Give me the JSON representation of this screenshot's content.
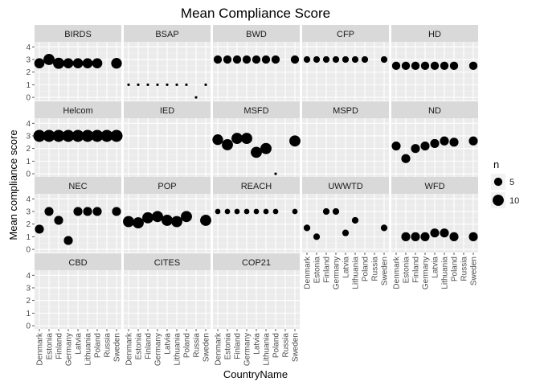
{
  "chart_data": {
    "type": "scatter",
    "title": "Mean Compliance Score",
    "xlabel": "CountryName",
    "ylabel": "Mean compliance score",
    "countries": [
      "Denmark",
      "Estonia",
      "Finland",
      "Germany",
      "Latvia",
      "Lithuania",
      "Poland",
      "Russia",
      "Sweden"
    ],
    "y_ticks": [
      "0",
      "1",
      "2",
      "3",
      "4"
    ],
    "ylim": [
      -0.25,
      4.4
    ],
    "grid": true,
    "legend": {
      "title": "n",
      "position": "right",
      "entries": [
        {
          "label": "5",
          "n": 5
        },
        {
          "label": "10",
          "n": 10
        }
      ]
    },
    "panels": [
      {
        "name": "BIRDS",
        "points": [
          {
            "x": "Denmark",
            "y": 2.7,
            "n": 8
          },
          {
            "x": "Estonia",
            "y": 3.0,
            "n": 10
          },
          {
            "x": "Finland",
            "y": 2.7,
            "n": 10
          },
          {
            "x": "Germany",
            "y": 2.7,
            "n": 8
          },
          {
            "x": "Latvia",
            "y": 2.7,
            "n": 8
          },
          {
            "x": "Lithuania",
            "y": 2.7,
            "n": 8
          },
          {
            "x": "Poland",
            "y": 2.7,
            "n": 8
          },
          {
            "x": "Sweden",
            "y": 2.7,
            "n": 9
          }
        ]
      },
      {
        "name": "BSAP",
        "points": [
          {
            "x": "Denmark",
            "y": 1.0,
            "n": 1
          },
          {
            "x": "Estonia",
            "y": 1.0,
            "n": 1
          },
          {
            "x": "Finland",
            "y": 1.0,
            "n": 1
          },
          {
            "x": "Germany",
            "y": 1.0,
            "n": 1
          },
          {
            "x": "Latvia",
            "y": 1.0,
            "n": 1
          },
          {
            "x": "Lithuania",
            "y": 1.0,
            "n": 1
          },
          {
            "x": "Poland",
            "y": 1.0,
            "n": 1
          },
          {
            "x": "Russia",
            "y": 0.0,
            "n": 1
          },
          {
            "x": "Sweden",
            "y": 1.0,
            "n": 1
          }
        ]
      },
      {
        "name": "BWD",
        "points": [
          {
            "x": "Denmark",
            "y": 3.0,
            "n": 5
          },
          {
            "x": "Estonia",
            "y": 3.0,
            "n": 5
          },
          {
            "x": "Finland",
            "y": 3.0,
            "n": 5
          },
          {
            "x": "Germany",
            "y": 3.0,
            "n": 5
          },
          {
            "x": "Latvia",
            "y": 3.0,
            "n": 5
          },
          {
            "x": "Lithuania",
            "y": 3.0,
            "n": 5
          },
          {
            "x": "Poland",
            "y": 3.0,
            "n": 5
          },
          {
            "x": "Sweden",
            "y": 3.0,
            "n": 5
          }
        ]
      },
      {
        "name": "CFP",
        "points": [
          {
            "x": "Denmark",
            "y": 3.0,
            "n": 3
          },
          {
            "x": "Estonia",
            "y": 3.0,
            "n": 3
          },
          {
            "x": "Finland",
            "y": 3.0,
            "n": 3
          },
          {
            "x": "Germany",
            "y": 3.0,
            "n": 3
          },
          {
            "x": "Latvia",
            "y": 3.0,
            "n": 3
          },
          {
            "x": "Lithuania",
            "y": 3.0,
            "n": 3
          },
          {
            "x": "Poland",
            "y": 3.0,
            "n": 3
          },
          {
            "x": "Sweden",
            "y": 3.0,
            "n": 3
          }
        ]
      },
      {
        "name": "HD",
        "points": [
          {
            "x": "Denmark",
            "y": 2.5,
            "n": 5
          },
          {
            "x": "Estonia",
            "y": 2.5,
            "n": 5
          },
          {
            "x": "Finland",
            "y": 2.5,
            "n": 5
          },
          {
            "x": "Germany",
            "y": 2.5,
            "n": 5
          },
          {
            "x": "Latvia",
            "y": 2.5,
            "n": 5
          },
          {
            "x": "Lithuania",
            "y": 2.5,
            "n": 5
          },
          {
            "x": "Poland",
            "y": 2.5,
            "n": 5
          },
          {
            "x": "Sweden",
            "y": 2.5,
            "n": 5
          }
        ]
      },
      {
        "name": "Helcom",
        "points": [
          {
            "x": "Denmark",
            "y": 3.0,
            "n": 12
          },
          {
            "x": "Estonia",
            "y": 3.0,
            "n": 12
          },
          {
            "x": "Finland",
            "y": 3.0,
            "n": 12
          },
          {
            "x": "Germany",
            "y": 3.0,
            "n": 12
          },
          {
            "x": "Latvia",
            "y": 3.0,
            "n": 12
          },
          {
            "x": "Lithuania",
            "y": 3.0,
            "n": 12
          },
          {
            "x": "Poland",
            "y": 3.0,
            "n": 12
          },
          {
            "x": "Russia",
            "y": 3.0,
            "n": 12
          },
          {
            "x": "Sweden",
            "y": 3.0,
            "n": 12
          }
        ]
      },
      {
        "name": "IED",
        "points": []
      },
      {
        "name": "MSFD",
        "points": [
          {
            "x": "Denmark",
            "y": 2.7,
            "n": 9
          },
          {
            "x": "Estonia",
            "y": 2.3,
            "n": 10
          },
          {
            "x": "Finland",
            "y": 2.8,
            "n": 10
          },
          {
            "x": "Germany",
            "y": 2.8,
            "n": 10
          },
          {
            "x": "Latvia",
            "y": 1.7,
            "n": 10
          },
          {
            "x": "Lithuania",
            "y": 2.0,
            "n": 10
          },
          {
            "x": "Poland",
            "y": 0.0,
            "n": 1
          },
          {
            "x": "Sweden",
            "y": 2.6,
            "n": 10
          }
        ]
      },
      {
        "name": "MSPD",
        "points": []
      },
      {
        "name": "ND",
        "points": [
          {
            "x": "Denmark",
            "y": 2.2,
            "n": 6
          },
          {
            "x": "Estonia",
            "y": 1.2,
            "n": 6
          },
          {
            "x": "Finland",
            "y": 2.0,
            "n": 6
          },
          {
            "x": "Germany",
            "y": 2.2,
            "n": 6
          },
          {
            "x": "Latvia",
            "y": 2.4,
            "n": 6
          },
          {
            "x": "Lithuania",
            "y": 2.6,
            "n": 6
          },
          {
            "x": "Poland",
            "y": 2.5,
            "n": 6
          },
          {
            "x": "Sweden",
            "y": 2.6,
            "n": 6
          }
        ]
      },
      {
        "name": "NEC",
        "points": [
          {
            "x": "Denmark",
            "y": 1.6,
            "n": 6
          },
          {
            "x": "Estonia",
            "y": 3.0,
            "n": 6
          },
          {
            "x": "Finland",
            "y": 2.3,
            "n": 6
          },
          {
            "x": "Germany",
            "y": 0.7,
            "n": 6
          },
          {
            "x": "Latvia",
            "y": 3.0,
            "n": 6
          },
          {
            "x": "Lithuania",
            "y": 3.0,
            "n": 6
          },
          {
            "x": "Poland",
            "y": 3.0,
            "n": 6
          },
          {
            "x": "Sweden",
            "y": 3.0,
            "n": 6
          }
        ]
      },
      {
        "name": "POP",
        "points": [
          {
            "x": "Denmark",
            "y": 2.2,
            "n": 10
          },
          {
            "x": "Estonia",
            "y": 2.1,
            "n": 10
          },
          {
            "x": "Finland",
            "y": 2.5,
            "n": 10
          },
          {
            "x": "Germany",
            "y": 2.6,
            "n": 10
          },
          {
            "x": "Latvia",
            "y": 2.3,
            "n": 10
          },
          {
            "x": "Lithuania",
            "y": 2.2,
            "n": 10
          },
          {
            "x": "Poland",
            "y": 2.6,
            "n": 10
          },
          {
            "x": "Sweden",
            "y": 2.3,
            "n": 10
          }
        ]
      },
      {
        "name": "REACH",
        "points": [
          {
            "x": "Denmark",
            "y": 3.0,
            "n": 2
          },
          {
            "x": "Estonia",
            "y": 3.0,
            "n": 2
          },
          {
            "x": "Finland",
            "y": 3.0,
            "n": 2
          },
          {
            "x": "Germany",
            "y": 3.0,
            "n": 2
          },
          {
            "x": "Latvia",
            "y": 3.0,
            "n": 2
          },
          {
            "x": "Lithuania",
            "y": 3.0,
            "n": 2
          },
          {
            "x": "Poland",
            "y": 3.0,
            "n": 2
          },
          {
            "x": "Sweden",
            "y": 3.0,
            "n": 2
          }
        ]
      },
      {
        "name": "UWWTD",
        "points": [
          {
            "x": "Denmark",
            "y": 1.7,
            "n": 3
          },
          {
            "x": "Estonia",
            "y": 1.0,
            "n": 3
          },
          {
            "x": "Finland",
            "y": 3.0,
            "n": 3
          },
          {
            "x": "Germany",
            "y": 3.0,
            "n": 3
          },
          {
            "x": "Latvia",
            "y": 1.3,
            "n": 3
          },
          {
            "x": "Lithuania",
            "y": 2.3,
            "n": 3
          },
          {
            "x": "Sweden",
            "y": 1.7,
            "n": 3
          }
        ]
      },
      {
        "name": "WFD",
        "points": [
          {
            "x": "Estonia",
            "y": 1.0,
            "n": 6
          },
          {
            "x": "Finland",
            "y": 1.0,
            "n": 6
          },
          {
            "x": "Germany",
            "y": 1.0,
            "n": 6
          },
          {
            "x": "Latvia",
            "y": 1.3,
            "n": 6
          },
          {
            "x": "Lithuania",
            "y": 1.3,
            "n": 6
          },
          {
            "x": "Poland",
            "y": 1.0,
            "n": 6
          },
          {
            "x": "Sweden",
            "y": 1.0,
            "n": 6
          }
        ]
      },
      {
        "name": "CBD",
        "points": []
      },
      {
        "name": "CITES",
        "points": []
      },
      {
        "name": "COP21",
        "points": []
      }
    ]
  }
}
